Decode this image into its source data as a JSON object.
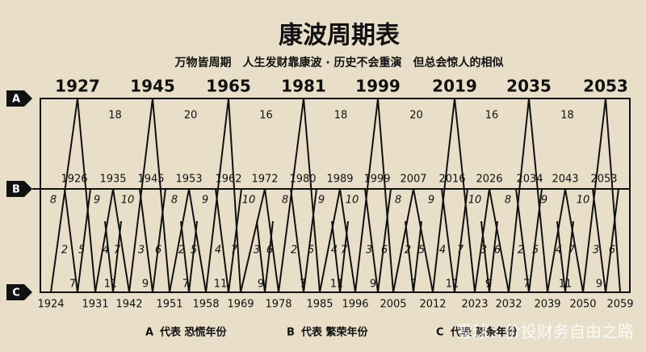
{
  "title": "康波周期表",
  "subtitle": "万物皆周期　人生发财靠康波 · 历史不会重演　但总会惊人的相似",
  "levels": [
    "A",
    "B",
    "C"
  ],
  "a_years": [
    1927,
    1945,
    1965,
    1981,
    1999,
    2019,
    2035,
    2053
  ],
  "a_intervals": [
    18,
    20,
    16,
    18,
    20,
    16,
    18
  ],
  "b_years": [
    1926,
    1935,
    1945,
    1953,
    1962,
    1972,
    1980,
    1989,
    1999,
    2007,
    2016,
    2026,
    2034,
    2043,
    2053
  ],
  "c_years": [
    1924,
    1931,
    1942,
    1951,
    1958,
    1969,
    1978,
    1985,
    1996,
    2005,
    2012,
    2023,
    2032,
    2039,
    2050,
    2059
  ],
  "row1": [
    8,
    9,
    10,
    8,
    9,
    10,
    8,
    9,
    10,
    8,
    9,
    10,
    8,
    9,
    10
  ],
  "row2": [
    2,
    5,
    4,
    7,
    3,
    6,
    2,
    5,
    4,
    7,
    3,
    6,
    2,
    5,
    4,
    7,
    3,
    6,
    2,
    5,
    4,
    7,
    3,
    6,
    2,
    5,
    4,
    7,
    3,
    6
  ],
  "row3": [
    7,
    11,
    9,
    7,
    11,
    9,
    7,
    11,
    9,
    7,
    11,
    9,
    7,
    11,
    9
  ],
  "legend": [
    {
      "letter": "A",
      "text": "代表 恐慌年份"
    },
    {
      "letter": "B",
      "text": "代表 繁荣年份"
    },
    {
      "letter": "C",
      "text": "代表 萧条年份"
    }
  ],
  "watermark": "雪球：价投财务自由之路"
}
